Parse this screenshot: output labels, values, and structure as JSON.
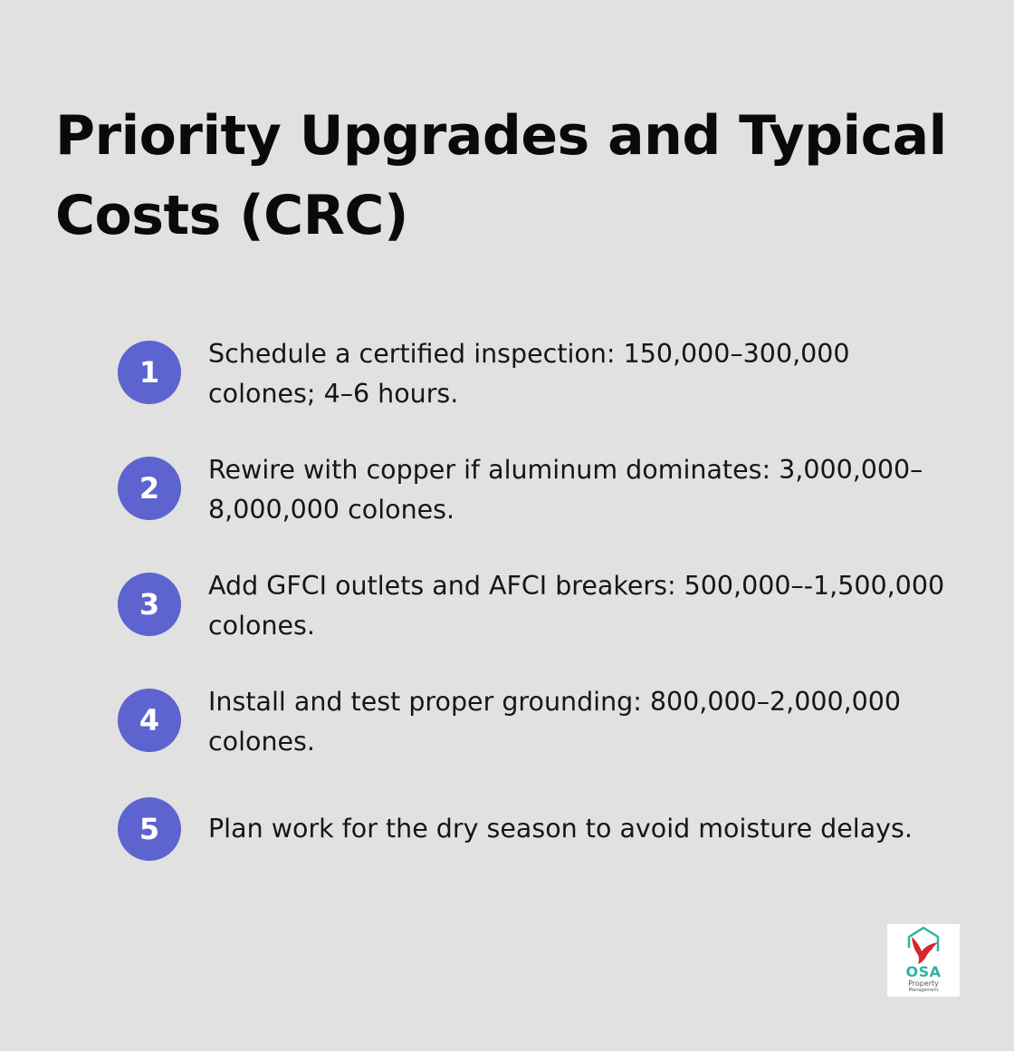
{
  "title": "Priority Upgrades and Typical Costs (CRC)",
  "accent_color": "#5d63cf",
  "steps": [
    {
      "number": "1",
      "text": "Schedule a certified inspection: 150,000–300,000 colones; 4–6 hours."
    },
    {
      "number": "2",
      "text": "Rewire with copper if aluminum dominates: 3,000,000–8,000,000 colones."
    },
    {
      "number": "3",
      "text": "Add GFCI outlets and AFCI breakers: 500,000–-1,500,000 colones."
    },
    {
      "number": "4",
      "text": "Install and test proper grounding: 800,000–2,000,000 colones."
    },
    {
      "number": "5",
      "text": "Plan work for the dry season to avoid moisture delays."
    }
  ],
  "logo": {
    "brand": "OSA",
    "line1": "Property",
    "line2": "Management",
    "icon": "bird-house-icon"
  }
}
